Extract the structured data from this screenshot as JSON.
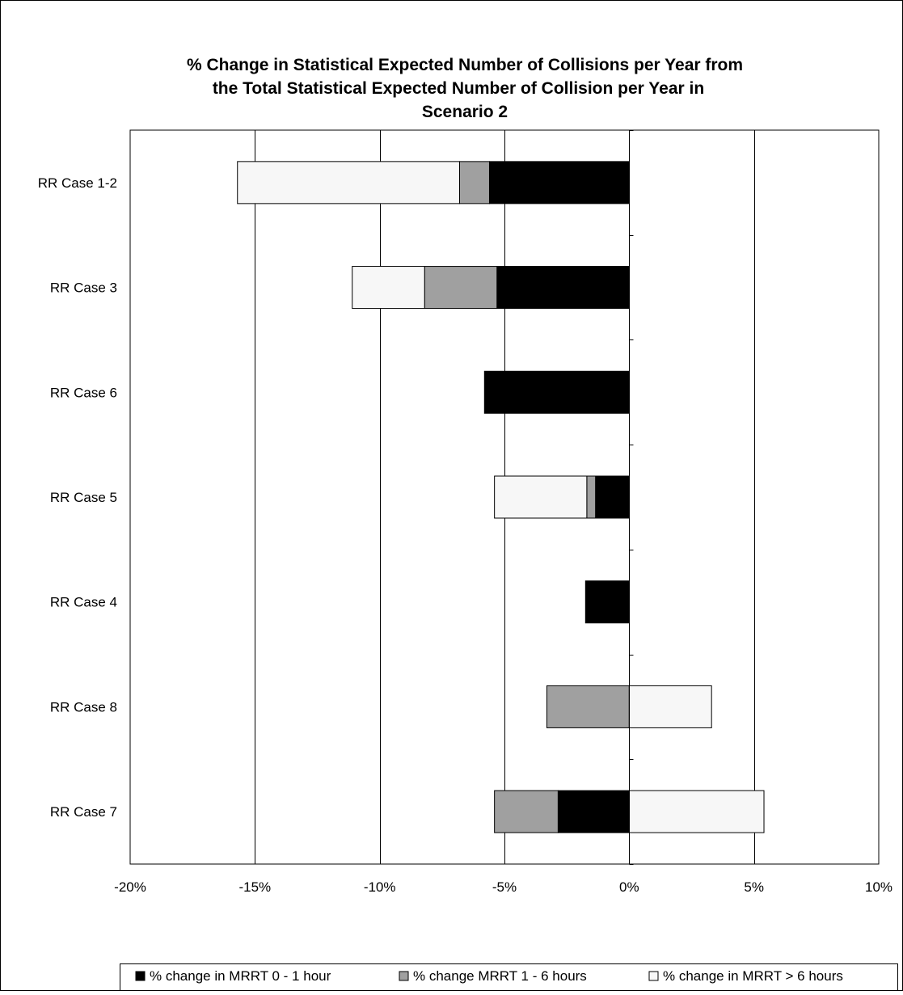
{
  "chart_data": {
    "type": "bar",
    "orientation": "horizontal",
    "stacked": true,
    "title_lines": [
      "% Change in Statistical Expected Number of Collisions per Year  from",
      "the Total Statistical Expected Number of Collision per Year in",
      "Scenario 2"
    ],
    "categories": [
      "RR Case 1-2",
      "RR Case 3",
      "RR Case 6",
      "RR Case 5",
      "RR Case 4",
      "RR Case 8",
      "RR Case 7"
    ],
    "series": [
      {
        "name": "% change in MRRT 0 - 1 hour",
        "color": "#000000",
        "values": [
          -5.6,
          -5.3,
          -5.8,
          -1.35,
          -1.75,
          0,
          -2.85
        ]
      },
      {
        "name": "% change MRRT 1 - 6 hours",
        "color": "#a0a0a0",
        "values": [
          -1.2,
          -2.9,
          0,
          -0.35,
          0,
          -3.3,
          -2.55
        ]
      },
      {
        "name": "% change in MRRT > 6 hours",
        "color": "#f7f7f7",
        "values": [
          -8.9,
          -2.9,
          0,
          -3.7,
          0,
          3.3,
          5.4
        ]
      }
    ],
    "xlim": [
      -20,
      10
    ],
    "xticks": [
      -20,
      -15,
      -10,
      -5,
      0,
      5,
      10
    ],
    "xtick_labels": [
      "-20%",
      "-15%",
      "-10%",
      "-5%",
      "0%",
      "5%",
      "10%"
    ],
    "gridlines": "vertical",
    "legend_position": "bottom"
  }
}
